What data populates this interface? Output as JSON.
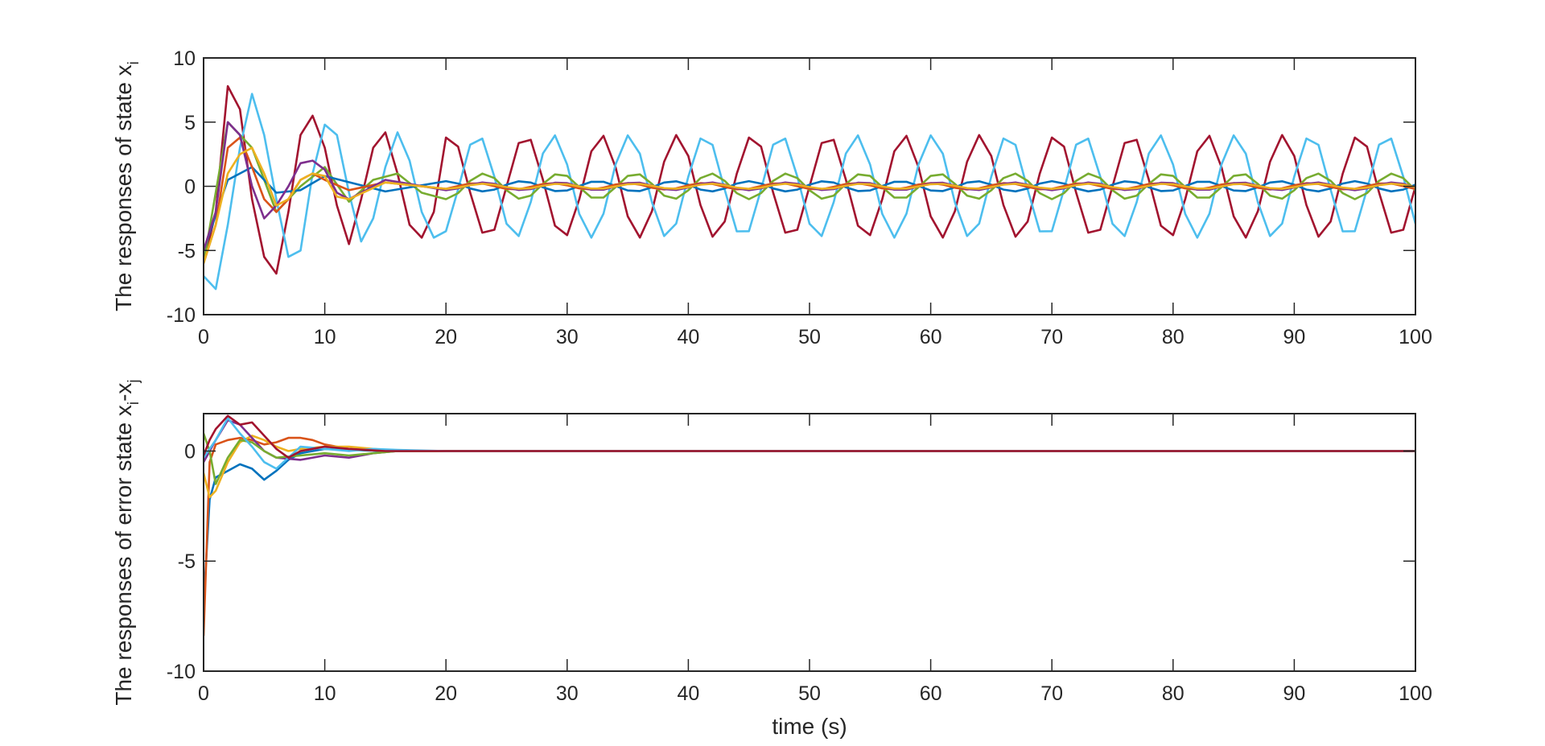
{
  "chart_data": [
    {
      "type": "line",
      "title": "",
      "ylabel": "The responses of state x",
      "ylabel_subscript": "i",
      "xlabel": "",
      "xlim": [
        0,
        100
      ],
      "ylim": [
        -10,
        10
      ],
      "xticks": [
        0,
        10,
        20,
        30,
        40,
        50,
        60,
        70,
        80,
        90,
        100
      ],
      "yticks": [
        -10,
        -5,
        0,
        5,
        10
      ],
      "grid": false,
      "legend": "none",
      "series_colors": [
        "#0072BD",
        "#D95319",
        "#EDB120",
        "#7E2F8E",
        "#77AC30",
        "#4DBEEE",
        "#A2142F"
      ],
      "series": [
        {
          "color": "#A2142F",
          "x": [
            0,
            1,
            2,
            3,
            4,
            5,
            6,
            7,
            8,
            9,
            10,
            11,
            12,
            13,
            14,
            15,
            16,
            17,
            18,
            19,
            20,
            22,
            24,
            26,
            28,
            30,
            35,
            40,
            45,
            50,
            55,
            60,
            65,
            70,
            75,
            80,
            85,
            90,
            95,
            100
          ],
          "y": [
            -6,
            -2,
            7.8,
            6,
            -1,
            -5.5,
            -6.8,
            -2,
            4,
            5.5,
            3,
            -1.5,
            -4.5,
            -1,
            3,
            4.2,
            1,
            -3,
            -4,
            -2,
            3.8,
            -3.8,
            3.8,
            -3.8,
            3.9,
            -3.9,
            3.9,
            -3.9,
            3.9,
            -3.9,
            3.9,
            -3.9,
            3.9,
            -3.9,
            3.9,
            -3.9,
            3.9,
            -3.9,
            3.9,
            -4
          ],
          "period": 6.25,
          "amplitude": 4.0
        },
        {
          "color": "#4DBEEE",
          "x": [
            0,
            1,
            2,
            3,
            4,
            5,
            6,
            7,
            8,
            9,
            10,
            11,
            12,
            13,
            14,
            15,
            16,
            17,
            18,
            19,
            20,
            22,
            24,
            26,
            28,
            30,
            35,
            40,
            45,
            50,
            55,
            60,
            65,
            70,
            75,
            80,
            85,
            90,
            95,
            100
          ],
          "y": [
            -7,
            -8,
            -3,
            3,
            7.2,
            4,
            -1,
            -5.5,
            -5,
            1,
            4.8,
            4,
            -0.5,
            -4.3,
            -2.5,
            1.5,
            4.2,
            2,
            -2,
            -4,
            -3.5,
            3.8,
            -3.8,
            3.9,
            -3.9,
            3.9,
            -3.9,
            3.9,
            -3.9,
            3.9,
            -3.9,
            3.9,
            -3.9,
            3.9,
            -3.9,
            3.9,
            -3.9,
            3.9,
            -3.9,
            -0.8
          ],
          "period": 6.25,
          "amplitude": 4.0
        },
        {
          "color": "#77AC30",
          "x": [
            0,
            2,
            4,
            6,
            8,
            10,
            12,
            14,
            16,
            18,
            20,
            22,
            24,
            26,
            28,
            30,
            40,
            50,
            60,
            70,
            80,
            90,
            100
          ],
          "y": [
            -6,
            5,
            3,
            -2,
            0,
            1.5,
            -1.2,
            0.5,
            1,
            -0.5,
            -1,
            0.9,
            -0.9,
            1,
            -1,
            1,
            -1,
            1,
            -1,
            1,
            -1,
            1,
            0.5
          ],
          "period": 6.25,
          "amplitude": 1.0
        },
        {
          "color": "#0072BD",
          "x": [
            0,
            2,
            4,
            6,
            8,
            10,
            15,
            20,
            30,
            40,
            50,
            60,
            70,
            80,
            90,
            100
          ],
          "y": [
            -5,
            0.5,
            1.5,
            -0.5,
            -0.3,
            0.8,
            -0.4,
            0.4,
            -0.4,
            0.4,
            -0.4,
            0.4,
            -0.4,
            0.4,
            -0.4,
            0.4
          ],
          "period": 6.25,
          "amplitude": 0.4
        },
        {
          "color": "#D95319",
          "x": [
            0,
            1,
            2,
            3,
            4,
            5,
            6,
            7,
            8,
            9,
            10,
            12,
            15,
            20,
            30,
            40,
            50,
            60,
            70,
            80,
            90,
            100
          ],
          "y": [
            -6,
            -3,
            3,
            3.8,
            1.5,
            -1,
            -2,
            -1,
            0.5,
            1,
            0.5,
            -0.3,
            0.3,
            -0.2,
            0.2,
            -0.2,
            0.2,
            -0.2,
            0.2,
            -0.2,
            0.2,
            0.2
          ],
          "period": 6.25,
          "amplitude": 0.25
        },
        {
          "color": "#7E2F8E",
          "x": [
            0,
            1,
            2,
            3,
            4,
            5,
            6,
            7,
            8,
            9,
            10,
            11,
            12,
            15,
            20,
            30,
            40,
            50,
            60,
            70,
            80,
            90,
            100
          ],
          "y": [
            -5,
            -2,
            5,
            4,
            0,
            -2.5,
            -1.5,
            0,
            1.8,
            2,
            1.3,
            -0.5,
            -1,
            0.5,
            -0.3,
            0.3,
            -0.3,
            0.3,
            -0.3,
            0.3,
            -0.3,
            0.3,
            0.2
          ],
          "period": 6.25,
          "amplitude": 0.3
        },
        {
          "color": "#EDB120",
          "x": [
            0,
            1,
            2,
            3,
            4,
            5,
            6,
            7,
            8,
            9,
            10,
            11,
            12,
            15,
            20,
            30,
            40,
            50,
            60,
            70,
            80,
            90,
            100
          ],
          "y": [
            -6,
            -3,
            1,
            2.5,
            3,
            1,
            -1.5,
            -1,
            0.5,
            1,
            0.8,
            -0.8,
            -1,
            0.3,
            -0.2,
            0.2,
            -0.2,
            0.2,
            -0.2,
            0.2,
            -0.2,
            0.2,
            0.1
          ],
          "period": 6.25,
          "amplitude": 0.2
        }
      ]
    },
    {
      "type": "line",
      "title": "",
      "ylabel": "The responses of error state x",
      "ylabel_subscript": "i",
      "ylabel_mid": "-x",
      "ylabel_subscript2": "j",
      "xlabel": "time (s)",
      "xlim": [
        0,
        100
      ],
      "ylim": [
        -10,
        1.7
      ],
      "xticks": [
        0,
        10,
        20,
        30,
        40,
        50,
        60,
        70,
        80,
        90,
        100
      ],
      "yticks": [
        -10,
        -5,
        0
      ],
      "grid": false,
      "legend": "none",
      "series": [
        {
          "color": "#0072BD",
          "x": [
            0,
            0.5,
            1,
            2,
            3,
            4,
            5,
            6,
            7,
            8,
            10,
            12,
            15,
            20,
            25,
            30,
            100
          ],
          "y": [
            -7,
            -2.2,
            -1.2,
            -0.9,
            -0.6,
            -0.8,
            -1.3,
            -0.9,
            -0.4,
            -0.1,
            0.1,
            0.05,
            0,
            0,
            0,
            0,
            0
          ]
        },
        {
          "color": "#D95319",
          "x": [
            0,
            0.5,
            1,
            2,
            3,
            4,
            5,
            6,
            7,
            8,
            9,
            10,
            12,
            15,
            20,
            25,
            100
          ],
          "y": [
            -8.4,
            -0.5,
            0.3,
            0.5,
            0.6,
            0.5,
            0.3,
            0.4,
            0.6,
            0.6,
            0.5,
            0.3,
            0.1,
            0,
            0,
            0,
            0
          ]
        },
        {
          "color": "#EDB120",
          "x": [
            0,
            0.5,
            1,
            2,
            3,
            4,
            5,
            6,
            7,
            8,
            10,
            12,
            14,
            16,
            20,
            25,
            100
          ],
          "y": [
            -1,
            -2.1,
            -1.8,
            -0.5,
            0.4,
            0.7,
            0.5,
            0.2,
            0,
            0.1,
            0.2,
            0.2,
            0.1,
            0,
            0,
            0,
            0
          ]
        },
        {
          "color": "#7E2F8E",
          "x": [
            0,
            1,
            2,
            3,
            4,
            5,
            6,
            8,
            10,
            12,
            14,
            16,
            20,
            100
          ],
          "y": [
            -0.5,
            0.5,
            1.4,
            1.2,
            0.6,
            0,
            -0.3,
            -0.4,
            -0.2,
            -0.3,
            -0.1,
            0,
            0,
            0
          ]
        },
        {
          "color": "#77AC30",
          "x": [
            0,
            0.5,
            1,
            2,
            3,
            4,
            5,
            6,
            8,
            10,
            12,
            14,
            16,
            20,
            100
          ],
          "y": [
            0.8,
            0,
            -1.5,
            -0.3,
            0.5,
            0.4,
            0,
            -0.3,
            -0.2,
            -0.1,
            -0.2,
            -0.1,
            0,
            0,
            0
          ]
        },
        {
          "color": "#4DBEEE",
          "x": [
            0,
            1,
            2,
            3,
            4,
            5,
            6,
            7,
            8,
            10,
            12,
            14,
            16,
            20,
            22,
            25,
            100
          ],
          "y": [
            -0.3,
            0.5,
            1.5,
            0.8,
            0.2,
            -0.5,
            -0.8,
            -0.3,
            0.2,
            0.1,
            0,
            0.1,
            0.05,
            0,
            0,
            0,
            0
          ]
        },
        {
          "color": "#A2142F",
          "x": [
            0,
            0.5,
            1,
            2,
            3,
            4,
            5,
            6,
            7,
            8,
            10,
            12,
            15,
            20,
            100
          ],
          "y": [
            -0.2,
            0.5,
            1,
            1.6,
            1.2,
            1.3,
            0.7,
            0.1,
            -0.3,
            0,
            0.2,
            0.1,
            0,
            0,
            0
          ]
        }
      ]
    }
  ]
}
